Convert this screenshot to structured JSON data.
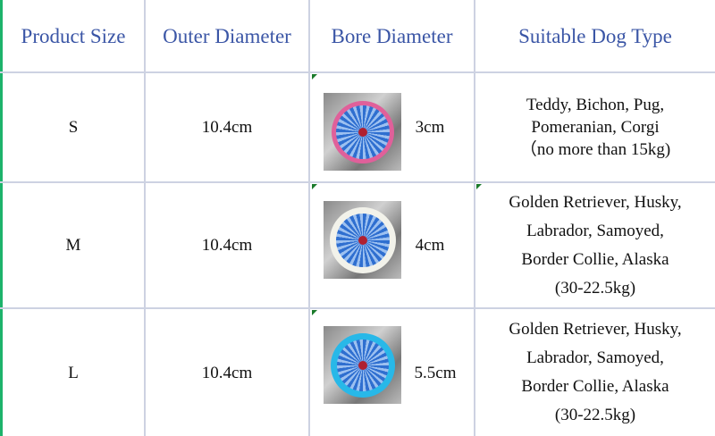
{
  "headers": [
    "Product Size",
    "Outer Diameter",
    "Bore Diameter",
    "Suitable Dog Type"
  ],
  "rows": [
    {
      "size": "S",
      "outer": "10.4cm",
      "bore": "3cm",
      "ring_color": "#e0609a",
      "dogs": [
        "Teddy, Bichon, Pug,",
        "Pomeranian, Corgi",
        "（no more than 15kg)"
      ]
    },
    {
      "size": "M",
      "outer": "10.4cm",
      "bore": "4cm",
      "ring_color": "#f2f2ea",
      "dogs": [
        "Golden Retriever, Husky,",
        "Labrador, Samoyed,",
        "Border Collie, Alaska",
        "(30-22.5kg)"
      ]
    },
    {
      "size": "L",
      "outer": "10.4cm",
      "bore": "5.5cm",
      "ring_color": "#28b8e8",
      "dogs": [
        "Golden Retriever, Husky,",
        "Labrador, Samoyed,",
        "Border Collie, Alaska",
        "(30-22.5kg)"
      ]
    }
  ],
  "colors": {
    "header_text": "#3b56a6",
    "grid": "#cdd2e2",
    "left_border": "#1db36b"
  }
}
